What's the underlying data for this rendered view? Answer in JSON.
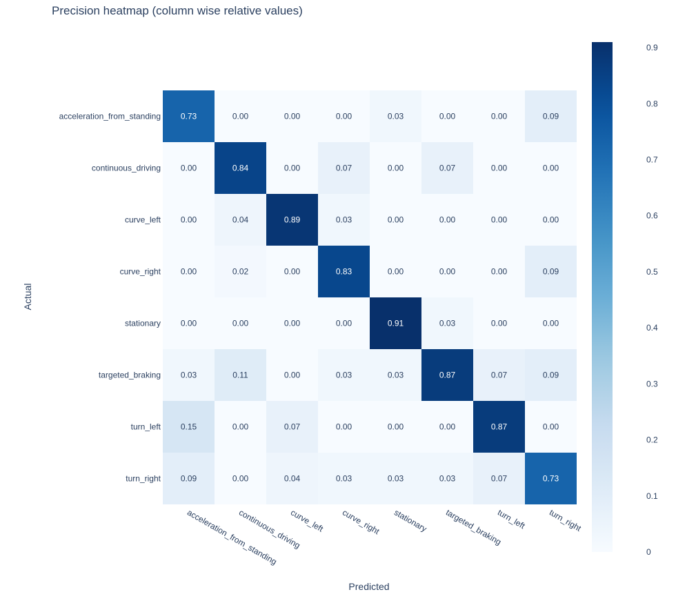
{
  "chart_data": {
    "type": "heatmap",
    "title": "Precision heatmap (column wise relative values)",
    "xlabel": "Predicted",
    "ylabel": "Actual",
    "x_categories": [
      "acceleration_from_standing",
      "continuous_driving",
      "curve_left",
      "curve_right",
      "stationary",
      "targeted_braking",
      "turn_left",
      "turn_right"
    ],
    "y_categories": [
      "acceleration_from_standing",
      "continuous_driving",
      "curve_left",
      "curve_right",
      "stationary",
      "targeted_braking",
      "turn_left",
      "turn_right"
    ],
    "values": [
      [
        0.73,
        0.0,
        0.0,
        0.0,
        0.03,
        0.0,
        0.0,
        0.09
      ],
      [
        0.0,
        0.84,
        0.0,
        0.07,
        0.0,
        0.07,
        0.0,
        0.0
      ],
      [
        0.0,
        0.04,
        0.89,
        0.03,
        0.0,
        0.0,
        0.0,
        0.0
      ],
      [
        0.0,
        0.02,
        0.0,
        0.83,
        0.0,
        0.0,
        0.0,
        0.09
      ],
      [
        0.0,
        0.0,
        0.0,
        0.0,
        0.91,
        0.03,
        0.0,
        0.0
      ],
      [
        0.03,
        0.11,
        0.0,
        0.03,
        0.03,
        0.87,
        0.07,
        0.09
      ],
      [
        0.15,
        0.0,
        0.07,
        0.0,
        0.0,
        0.0,
        0.87,
        0.0
      ],
      [
        0.09,
        0.0,
        0.04,
        0.03,
        0.03,
        0.03,
        0.07,
        0.73
      ]
    ],
    "zlim": [
      0,
      0.91
    ],
    "colorscale": "Blues",
    "colorbar_ticks": [
      "0",
      "0.1",
      "0.2",
      "0.3",
      "0.4",
      "0.5",
      "0.6",
      "0.7",
      "0.8",
      "0.9"
    ],
    "colorbar_tick_values": [
      0,
      0.1,
      0.2,
      0.3,
      0.4,
      0.5,
      0.6,
      0.7,
      0.8,
      0.9
    ],
    "colors": {
      "low": "#f7fbff",
      "high": "#08306b",
      "text_dark": "#2a3f5f",
      "text_light": "#ffffff"
    }
  }
}
